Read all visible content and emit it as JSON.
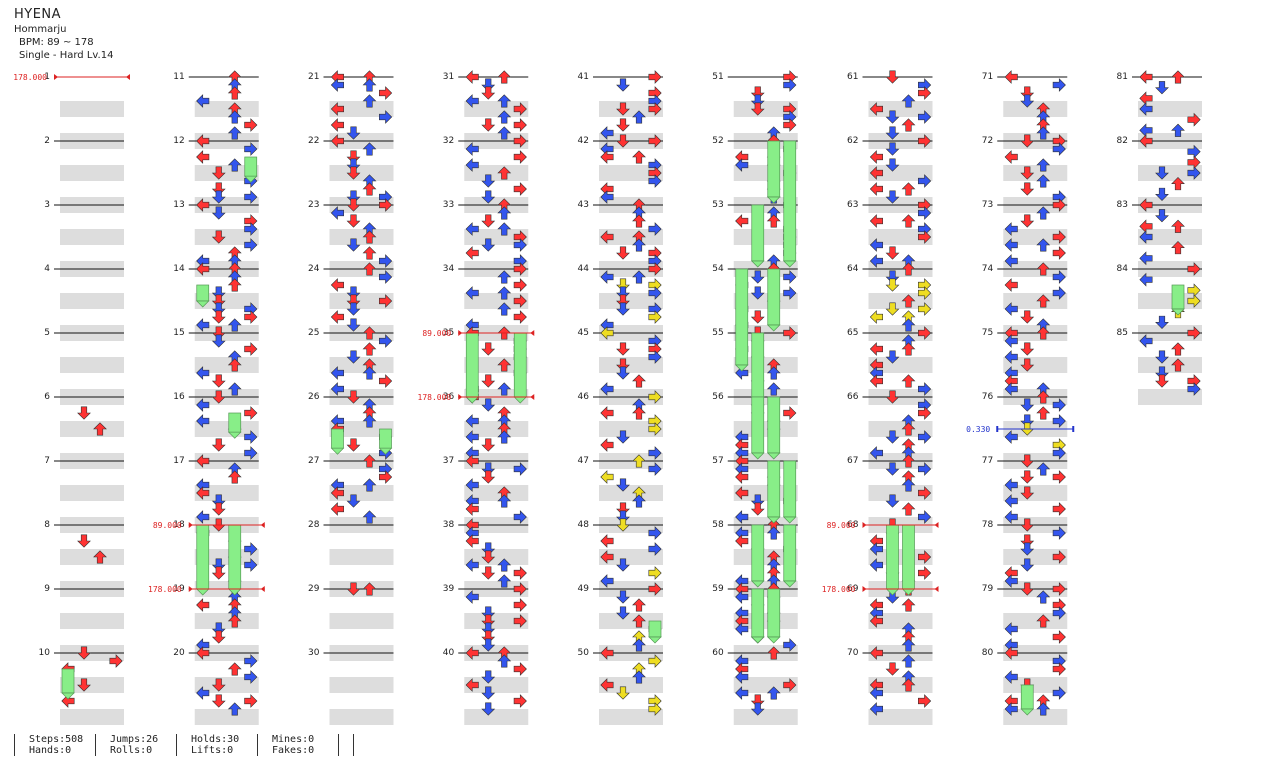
{
  "song": {
    "title": "HYENA",
    "artist": "Hommarju",
    "bpm_text": "BPM: 89 ~ 178",
    "difficulty_text": "Single - Hard  Lv.14"
  },
  "layout_info": {
    "columns": 9,
    "measures_per_column": 10,
    "total_measures": 85
  },
  "colors": {
    "quarter": "#ff3333",
    "eighth": "#3355ee",
    "sixteenth": "#eedd22",
    "hold": "#88ee88",
    "stripe": "#dddddd",
    "bpm_marker": "#dd2222",
    "stop_marker": "#2233cc"
  },
  "bpm_changes": [
    {
      "measure": 1,
      "beat": 0,
      "label": "178.000"
    },
    {
      "measure": 18,
      "beat": 0,
      "label": "89.000"
    },
    {
      "measure": 19,
      "beat": 0,
      "label": "178.000"
    },
    {
      "measure": 35,
      "beat": 0,
      "label": "89.000"
    },
    {
      "measure": 36,
      "beat": 0,
      "label": "178.000"
    },
    {
      "measure": 68,
      "beat": 0,
      "label": "89.000"
    },
    {
      "measure": 69,
      "beat": 0,
      "label": "178.000"
    }
  ],
  "stops": [
    {
      "measure": 76,
      "beat": 2,
      "label": "0.330"
    }
  ],
  "stats": [
    {
      "top": "Steps:508",
      "bottom": "Hands:0"
    },
    {
      "top": "Jumps:26",
      "bottom": "Rolls:0"
    },
    {
      "top": "Holds:30",
      "bottom": "Lifts:0"
    },
    {
      "top": "Mines:0",
      "bottom": "Fakes:0"
    },
    {
      "top": "",
      "bottom": ""
    }
  ]
}
